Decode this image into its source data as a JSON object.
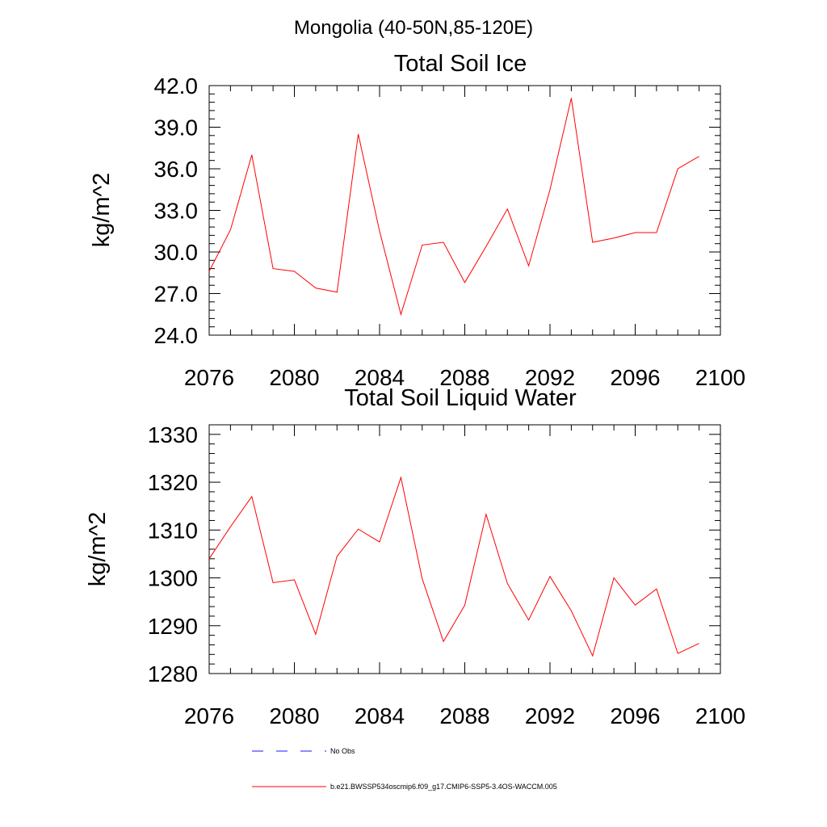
{
  "suptitle": "Mongolia (40-50N,85-120E)",
  "chart_data": [
    {
      "type": "line",
      "title": "Total Soil Ice",
      "xlabel": "",
      "ylabel": "kg/m^2",
      "xlim": [
        2076,
        2100
      ],
      "ylim": [
        24.0,
        42.0
      ],
      "xticks": [
        "2076",
        "2080",
        "2084",
        "2088",
        "2092",
        "2096",
        "2100"
      ],
      "yticks": [
        "24.0",
        "27.0",
        "30.0",
        "33.0",
        "36.0",
        "39.0",
        "42.0"
      ],
      "x": [
        2076,
        2077,
        2078,
        2079,
        2080,
        2081,
        2082,
        2083,
        2084,
        2085,
        2086,
        2087,
        2088,
        2089,
        2090,
        2091,
        2092,
        2093,
        2094,
        2095,
        2096,
        2097,
        2098,
        2099
      ],
      "series": [
        {
          "name": "b.e21.BWSSP534oscmip6.f09_g17.CMIP6-SSP5-3.4OS-WACCM.005",
          "color": "#ff0000",
          "values": [
            28.6,
            31.6,
            37.0,
            28.8,
            28.6,
            27.4,
            27.1,
            38.5,
            31.5,
            25.5,
            30.5,
            30.7,
            27.8,
            30.4,
            33.1,
            29.0,
            34.5,
            41.1,
            30.7,
            31.0,
            31.4,
            31.4,
            36.0,
            36.9
          ]
        }
      ]
    },
    {
      "type": "line",
      "title": "Total Soil Liquid Water",
      "xlabel": "",
      "ylabel": "kg/m^2",
      "xlim": [
        2076,
        2100
      ],
      "ylim": [
        1280,
        1332
      ],
      "xticks": [
        "2076",
        "2080",
        "2084",
        "2088",
        "2092",
        "2096",
        "2100"
      ],
      "yticks": [
        "1280",
        "1290",
        "1300",
        "1310",
        "1320",
        "1330"
      ],
      "x": [
        2076,
        2077,
        2078,
        2079,
        2080,
        2081,
        2082,
        2083,
        2084,
        2085,
        2086,
        2087,
        2088,
        2089,
        2090,
        2091,
        2092,
        2093,
        2094,
        2095,
        2096,
        2097,
        2098,
        2099
      ],
      "series": [
        {
          "name": "b.e21.BWSSP534oscmip6.f09_g17.CMIP6-SSP5-3.4OS-WACCM.005",
          "color": "#ff0000",
          "values": [
            1304.0,
            1310.7,
            1317.0,
            1299.0,
            1299.6,
            1288.2,
            1304.5,
            1310.2,
            1307.5,
            1321.0,
            1299.8,
            1286.7,
            1294.3,
            1313.3,
            1298.8,
            1291.2,
            1300.3,
            1293.1,
            1283.7,
            1300.0,
            1294.3,
            1297.7,
            1284.2,
            1286.3
          ]
        }
      ]
    }
  ],
  "legend": [
    {
      "label": "No Obs",
      "color": "#1a1aff",
      "style": "dashed"
    },
    {
      "label": "b.e21.BWSSP534oscmip6.f09_g17.CMIP6-SSP5-3.4OS-WACCM.005",
      "color": "#ff0000",
      "style": "solid"
    }
  ]
}
